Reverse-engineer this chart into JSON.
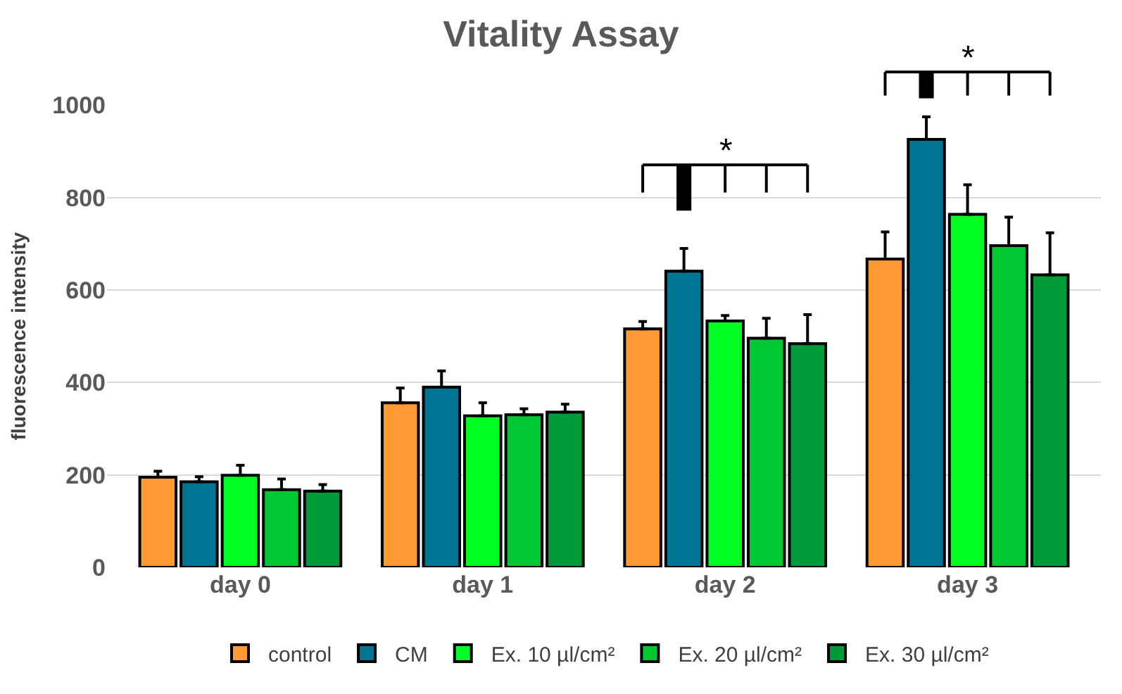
{
  "chart_data": {
    "type": "bar",
    "title": "Vitality Assay",
    "ylabel": "fluorescence intensity",
    "categories": [
      "day 0",
      "day 1",
      "day 2",
      "day 3"
    ],
    "series": [
      {
        "name": "control",
        "color": "#ff9933",
        "values": [
          195,
          356,
          516,
          667
        ],
        "errors": [
          [
            195,
            208
          ],
          [
            356,
            388
          ],
          [
            516,
            532
          ],
          [
            667,
            726
          ]
        ]
      },
      {
        "name": "CM",
        "color": "#007593",
        "values": [
          185,
          390,
          641,
          926
        ],
        "errors": [
          [
            185,
            196
          ],
          [
            390,
            425
          ],
          [
            641,
            690
          ],
          [
            926,
            975
          ]
        ]
      },
      {
        "name": "Ex. 10 µl/cm²",
        "color": "#00ff22",
        "values": [
          199,
          328,
          533,
          764
        ],
        "errors": [
          [
            199,
            221
          ],
          [
            328,
            356
          ],
          [
            533,
            545
          ],
          [
            764,
            828
          ]
        ]
      },
      {
        "name": "Ex. 20 µl/cm²",
        "color": "#00c832",
        "values": [
          168,
          330,
          496,
          696
        ],
        "errors": [
          [
            168,
            191
          ],
          [
            330,
            343
          ],
          [
            496,
            539
          ],
          [
            696,
            758
          ]
        ]
      },
      {
        "name": "Ex. 30 µl/cm²",
        "color": "#009a38",
        "values": [
          165,
          336,
          484,
          633
        ],
        "errors": [
          [
            165,
            179
          ],
          [
            336,
            353
          ],
          [
            484,
            547
          ],
          [
            633,
            724
          ]
        ]
      }
    ],
    "ylim": [
      0,
      1000
    ],
    "yticks": [
      0,
      200,
      400,
      600,
      800,
      1000
    ],
    "grid": "y",
    "legend": "bottom",
    "annotations": [
      "*",
      "*"
    ]
  }
}
